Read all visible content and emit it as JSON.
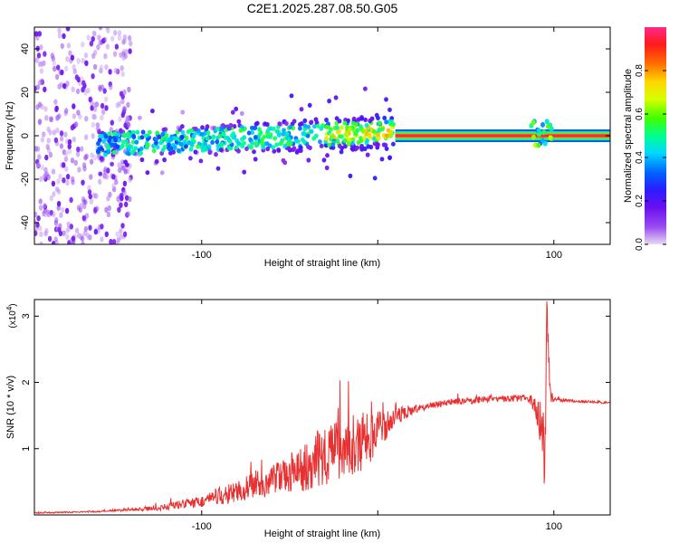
{
  "title": "C2E1.2025.287.08.50.G05",
  "chart_data": [
    {
      "type": "heatmap",
      "xlabel": "Height of straight line (km)",
      "ylabel": "Frequency (Hz)",
      "xlim": [
        -195,
        132
      ],
      "ylim": [
        -50,
        50
      ],
      "xticks": [
        -100,
        0,
        100
      ],
      "xtick_labels": [
        "-100",
        "",
        "100"
      ],
      "yticks": [
        -40,
        -20,
        0,
        20,
        40
      ],
      "ytick_labels": [
        "-40",
        "-20",
        "0",
        "20",
        "40"
      ],
      "colorbar": {
        "label": "Normalized spectral amplitude",
        "range": [
          0,
          1
        ],
        "ticks": [
          0.0,
          0.2,
          0.4,
          0.6,
          0.8
        ],
        "tick_labels": [
          "0.0",
          "0.2",
          "0.4",
          "0.6",
          "0.8"
        ],
        "colors": [
          "#e6daf2",
          "#9a4cf0",
          "#6a0ff0",
          "#2b1cff",
          "#0062ff",
          "#00d8ff",
          "#00ff90",
          "#40ff00",
          "#d8ff00",
          "#ffd400",
          "#ff7000",
          "#ff1a1a",
          "#ff2a8a"
        ]
      },
      "features": {
        "noise_region_x": [
          -195,
          -140
        ],
        "scattered_band": {
          "x": [
            -160,
            10
          ],
          "freq_center_hz": [
            -4,
            2
          ]
        },
        "coherent_line": {
          "x": [
            10,
            132
          ],
          "freq_hz": 0,
          "amplitude": 1.0
        },
        "burst_at_x": 93
      }
    },
    {
      "type": "line",
      "xlabel": "Height of straight line (km)",
      "ylabel": "SNR (10 * v/v)",
      "y_multiplier_label": "(x10",
      "y_multiplier_exponent": "4",
      "y_multiplier_suffix": ")",
      "xlim": [
        -195,
        132
      ],
      "ylim": [
        0,
        3.25
      ],
      "xticks": [
        -100,
        0,
        100
      ],
      "xtick_labels": [
        "-100",
        "",
        "100"
      ],
      "yticks": [
        1,
        2,
        3
      ],
      "ytick_labels": [
        "1",
        "2",
        "3"
      ],
      "series": [
        {
          "name": "SNR",
          "color": "#e83030",
          "x": [
            -195,
            -160,
            -140,
            -125,
            -115,
            -100,
            -90,
            -80,
            -70,
            -60,
            -50,
            -40,
            -30,
            -20,
            -10,
            -5,
            0,
            5,
            10,
            20,
            30,
            40,
            50,
            60,
            70,
            80,
            85,
            90,
            93,
            95,
            96,
            98,
            100,
            110,
            120,
            132
          ],
          "values": [
            0.03,
            0.05,
            0.08,
            0.1,
            0.15,
            0.2,
            0.28,
            0.35,
            0.45,
            0.5,
            0.6,
            0.75,
            0.9,
            1.05,
            1.1,
            1.15,
            1.3,
            1.35,
            1.5,
            1.58,
            1.65,
            1.7,
            1.72,
            1.74,
            1.75,
            1.76,
            1.77,
            1.6,
            1.3,
            0.9,
            3.2,
            1.8,
            1.74,
            1.72,
            1.71,
            1.69
          ],
          "noise_amplitude": [
            0.01,
            0.01,
            0.02,
            0.04,
            0.06,
            0.09,
            0.14,
            0.16,
            0.2,
            0.25,
            0.32,
            0.38,
            0.45,
            0.5,
            0.45,
            0.4,
            0.3,
            0.2,
            0.15,
            0.07,
            0.05,
            0.05,
            0.05,
            0.05,
            0.05,
            0.05,
            0.06,
            0.2,
            0.5,
            0.55,
            0.3,
            0.15,
            0.03,
            0.02,
            0.02,
            0.02
          ]
        }
      ]
    }
  ]
}
